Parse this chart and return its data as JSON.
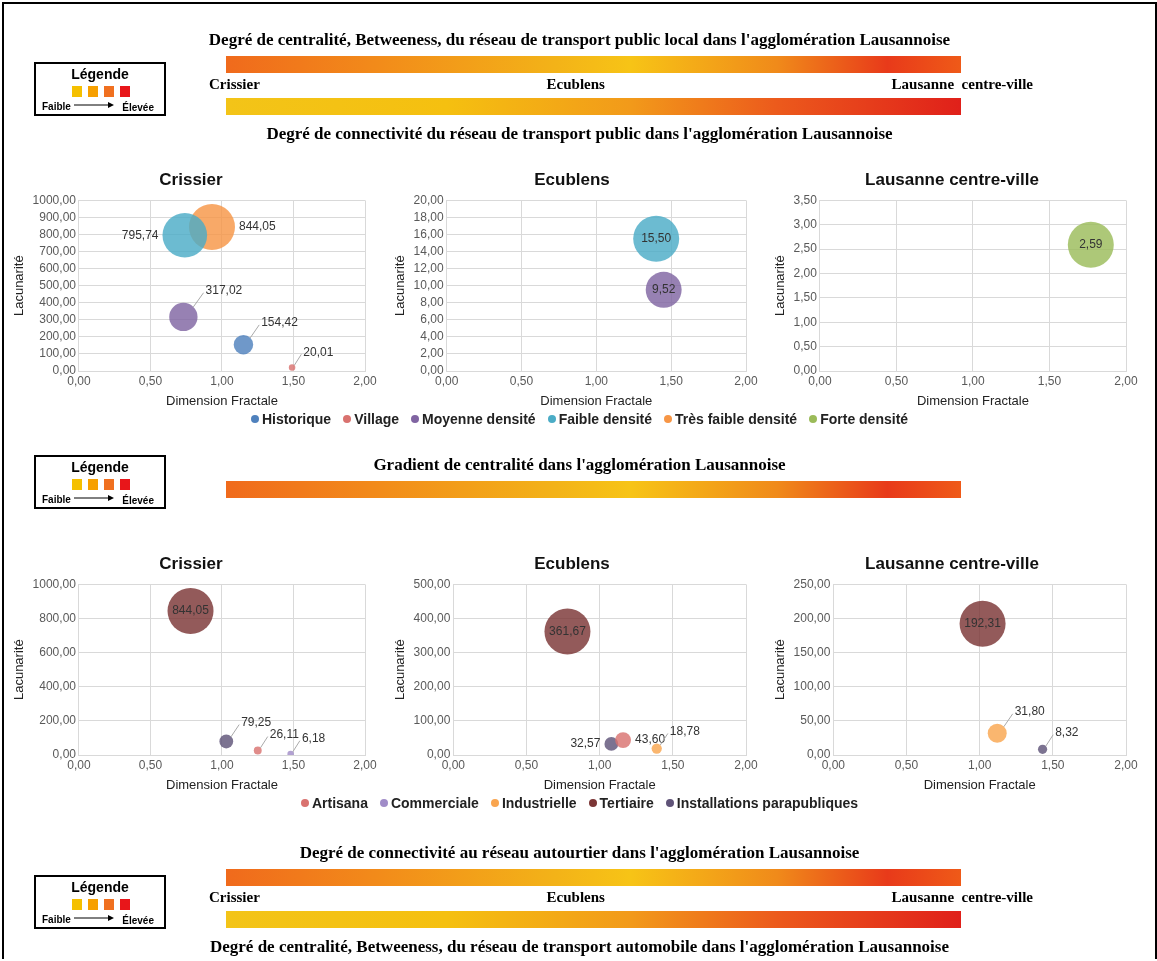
{
  "chart_data": [
    {
      "type": "other",
      "title": "Degré de centralité, Betweeness, du réseau de transport public local dans l'agglomération Lausannoise",
      "subtitle": "Degré de connectivité du réseau de transport public dans l'agglomération Lausannoise",
      "annotations": [
        "Légende",
        "Faible",
        "Élevée",
        "Crissier",
        "Ecublens",
        "Lausanne  centre-ville"
      ]
    },
    {
      "type": "bubble",
      "title": "Crissier",
      "xlabel": "Dimension Fractale",
      "ylabel": "Lacunarité",
      "grid": true,
      "legend": "bottom",
      "xlim": [
        0,
        2
      ],
      "xticks": [
        {
          "value": 0,
          "label": "0,00"
        },
        {
          "value": 0.5,
          "label": "0,50"
        },
        {
          "value": 1,
          "label": "1,00"
        },
        {
          "value": 1.5,
          "label": "1,50"
        },
        {
          "value": 2,
          "label": "2,00"
        }
      ],
      "ylim": [
        0,
        1000
      ],
      "yticks": [
        {
          "value": 0,
          "label": "0,00"
        },
        {
          "value": 100,
          "label": "100,00"
        },
        {
          "value": 200,
          "label": "200,00"
        },
        {
          "value": 300,
          "label": "300,00"
        },
        {
          "value": 400,
          "label": "400,00"
        },
        {
          "value": 500,
          "label": "500,00"
        },
        {
          "value": 600,
          "label": "600,00"
        },
        {
          "value": 700,
          "label": "700,00"
        },
        {
          "value": 800,
          "label": "800,00"
        },
        {
          "value": 900,
          "label": "900,00"
        },
        {
          "value": 1000,
          "label": "1000,00"
        }
      ],
      "series": [
        {
          "name": "Historique",
          "color": "#4f81bd",
          "x": [
            1.15
          ],
          "values": [
            154.42
          ],
          "sizes": [
            0.18
          ],
          "value_labels": [
            "154,42"
          ]
        },
        {
          "name": "Village",
          "color": "#d9726f",
          "x": [
            1.49
          ],
          "values": [
            20.01
          ],
          "sizes": [
            0.02
          ],
          "value_labels": [
            "20,01"
          ]
        },
        {
          "name": "Moyenne densité",
          "color": "#8064a2",
          "x": [
            0.73
          ],
          "values": [
            317.02
          ],
          "sizes": [
            0.38
          ],
          "value_labels": [
            "317,02"
          ]
        },
        {
          "name": "Faible densité",
          "color": "#4bacc6",
          "x": [
            0.74
          ],
          "values": [
            795.74
          ],
          "sizes": [
            0.94
          ],
          "value_labels": [
            "795,74"
          ]
        },
        {
          "name": "Très faible densité",
          "color": "#f79646",
          "x": [
            0.93
          ],
          "values": [
            844.05
          ],
          "sizes": [
            1
          ],
          "value_labels": [
            "844,05"
          ]
        }
      ]
    },
    {
      "type": "bubble",
      "title": "Ecublens",
      "xlabel": "Dimension Fractale",
      "ylabel": "Lacunarité",
      "grid": true,
      "legend": "bottom",
      "xlim": [
        0,
        2
      ],
      "xticks": [
        {
          "value": 0,
          "label": "0,00"
        },
        {
          "value": 0.5,
          "label": "0,50"
        },
        {
          "value": 1,
          "label": "1,00"
        },
        {
          "value": 1.5,
          "label": "1,50"
        },
        {
          "value": 2,
          "label": "2,00"
        }
      ],
      "ylim": [
        0,
        20
      ],
      "yticks": [
        {
          "value": 0,
          "label": "0,00"
        },
        {
          "value": 2,
          "label": "2,00"
        },
        {
          "value": 4,
          "label": "4,00"
        },
        {
          "value": 6,
          "label": "6,00"
        },
        {
          "value": 8,
          "label": "8,00"
        },
        {
          "value": 10,
          "label": "10,00"
        },
        {
          "value": 12,
          "label": "12,00"
        },
        {
          "value": 14,
          "label": "14,00"
        },
        {
          "value": 16,
          "label": "16,00"
        },
        {
          "value": 18,
          "label": "18,00"
        },
        {
          "value": 20,
          "label": "20,00"
        }
      ],
      "series": [
        {
          "name": "Moyenne densité",
          "color": "#8064a2",
          "x": [
            1.45
          ],
          "values": [
            9.52
          ],
          "sizes": [
            0.61
          ],
          "value_labels": [
            "9,52"
          ]
        },
        {
          "name": "Faible densité",
          "color": "#4bacc6",
          "x": [
            1.4
          ],
          "values": [
            15.5
          ],
          "sizes": [
            1
          ],
          "value_labels": [
            "15,50"
          ]
        }
      ]
    },
    {
      "type": "bubble",
      "title": "Lausanne centre-ville",
      "xlabel": "Dimension Fractale",
      "ylabel": "Lacunarité",
      "grid": true,
      "legend": "bottom",
      "xlim": [
        0,
        2
      ],
      "xticks": [
        {
          "value": 0,
          "label": "0,00"
        },
        {
          "value": 0.5,
          "label": "0,50"
        },
        {
          "value": 1,
          "label": "1,00"
        },
        {
          "value": 1.5,
          "label": "1,50"
        },
        {
          "value": 2,
          "label": "2,00"
        }
      ],
      "ylim": [
        0,
        3.5
      ],
      "yticks": [
        {
          "value": 0,
          "label": "0,00"
        },
        {
          "value": 0.5,
          "label": "0,50"
        },
        {
          "value": 1,
          "label": "1,00"
        },
        {
          "value": 1.5,
          "label": "1,50"
        },
        {
          "value": 2,
          "label": "2,00"
        },
        {
          "value": 2.5,
          "label": "2,50"
        },
        {
          "value": 3,
          "label": "3,00"
        },
        {
          "value": 3.5,
          "label": "3,50"
        }
      ],
      "series": [
        {
          "name": "Forte densité",
          "color": "#9bbb59",
          "x": [
            1.77
          ],
          "values": [
            2.59
          ],
          "sizes": [
            1
          ],
          "value_labels": [
            "2,59"
          ]
        }
      ]
    },
    {
      "type": "other",
      "title": "Gradient de centralité dans l'agglomération Lausannoise",
      "annotations": [
        "Légende",
        "Faible",
        "Élevée"
      ]
    },
    {
      "type": "bubble",
      "title": "Crissier",
      "xlabel": "Dimension Fractale",
      "ylabel": "Lacunarité",
      "grid": true,
      "legend": "bottom",
      "xlim": [
        0,
        2
      ],
      "xticks": [
        {
          "value": 0,
          "label": "0,00"
        },
        {
          "value": 0.5,
          "label": "0,50"
        },
        {
          "value": 1,
          "label": "1,00"
        },
        {
          "value": 1.5,
          "label": "1,50"
        },
        {
          "value": 2,
          "label": "2,00"
        }
      ],
      "ylim": [
        0,
        1000
      ],
      "yticks": [
        {
          "value": 0,
          "label": "0,00"
        },
        {
          "value": 200,
          "label": "200,00"
        },
        {
          "value": 400,
          "label": "400,00"
        },
        {
          "value": 600,
          "label": "600,00"
        },
        {
          "value": 800,
          "label": "800,00"
        },
        {
          "value": 1000,
          "label": "1000,00"
        }
      ],
      "series": [
        {
          "name": "Artisana",
          "color": "#d9726f",
          "x": [
            1.25
          ],
          "values": [
            26.11
          ],
          "sizes": [
            0.03
          ],
          "value_labels": [
            "26,11"
          ]
        },
        {
          "name": "Commerciale",
          "color": "#a08cc8",
          "x": [
            1.48
          ],
          "values": [
            6.18
          ],
          "sizes": [
            0.02
          ],
          "value_labels": [
            "6,18"
          ]
        },
        {
          "name": "Tertiaire",
          "color": "#7b3535",
          "x": [
            0.78
          ],
          "values": [
            844.05
          ],
          "sizes": [
            1
          ],
          "value_labels": [
            "844,05"
          ]
        },
        {
          "name": "Installations parapubliques",
          "color": "#5f5378",
          "x": [
            1.03
          ],
          "values": [
            79.25
          ],
          "sizes": [
            0.09
          ],
          "value_labels": [
            "79,25"
          ]
        }
      ]
    },
    {
      "type": "bubble",
      "title": "Ecublens",
      "xlabel": "Dimension Fractale",
      "ylabel": "Lacunarité",
      "grid": true,
      "legend": "bottom",
      "xlim": [
        0,
        2
      ],
      "xticks": [
        {
          "value": 0,
          "label": "0,00"
        },
        {
          "value": 0.5,
          "label": "0,50"
        },
        {
          "value": 1,
          "label": "1,00"
        },
        {
          "value": 1.5,
          "label": "1,50"
        },
        {
          "value": 2,
          "label": "2,00"
        }
      ],
      "ylim": [
        0,
        500
      ],
      "yticks": [
        {
          "value": 0,
          "label": "0,00"
        },
        {
          "value": 100,
          "label": "100,00"
        },
        {
          "value": 200,
          "label": "200,00"
        },
        {
          "value": 300,
          "label": "300,00"
        },
        {
          "value": 400,
          "label": "400,00"
        },
        {
          "value": 500,
          "label": "500,00"
        }
      ],
      "series": [
        {
          "name": "Artisana",
          "color": "#d9726f",
          "x": [
            1.16
          ],
          "values": [
            43.6
          ],
          "sizes": [
            0.12
          ],
          "value_labels": [
            "43,60"
          ]
        },
        {
          "name": "Industrielle",
          "color": "#f9a54f",
          "x": [
            1.39
          ],
          "values": [
            18.78
          ],
          "sizes": [
            0.05
          ],
          "value_labels": [
            "18,78"
          ]
        },
        {
          "name": "Tertiaire",
          "color": "#7b3535",
          "x": [
            0.78
          ],
          "values": [
            361.67
          ],
          "sizes": [
            1
          ],
          "value_labels": [
            "361,67"
          ]
        },
        {
          "name": "Installations parapubliques",
          "color": "#5f5378",
          "x": [
            1.08
          ],
          "values": [
            32.57
          ],
          "sizes": [
            0.09
          ],
          "value_labels": [
            "32,57"
          ]
        }
      ]
    },
    {
      "type": "bubble",
      "title": "Lausanne centre-ville",
      "xlabel": "Dimension Fractale",
      "ylabel": "Lacunarité",
      "grid": true,
      "legend": "bottom",
      "xlim": [
        0,
        2
      ],
      "xticks": [
        {
          "value": 0,
          "label": "0,00"
        },
        {
          "value": 0.5,
          "label": "0,50"
        },
        {
          "value": 1,
          "label": "1,00"
        },
        {
          "value": 1.5,
          "label": "1,50"
        },
        {
          "value": 2,
          "label": "2,00"
        }
      ],
      "ylim": [
        0,
        250
      ],
      "yticks": [
        {
          "value": 0,
          "label": "0,00"
        },
        {
          "value": 50,
          "label": "50,00"
        },
        {
          "value": 100,
          "label": "100,00"
        },
        {
          "value": 150,
          "label": "150,00"
        },
        {
          "value": 200,
          "label": "200,00"
        },
        {
          "value": 250,
          "label": "250,00"
        }
      ],
      "series": [
        {
          "name": "Industrielle",
          "color": "#f9a54f",
          "x": [
            1.12
          ],
          "values": [
            31.8
          ],
          "sizes": [
            0.17
          ],
          "value_labels": [
            "31,80"
          ]
        },
        {
          "name": "Tertiaire",
          "color": "#7b3535",
          "x": [
            1.02
          ],
          "values": [
            192.31
          ],
          "sizes": [
            1
          ],
          "value_labels": [
            "192,31"
          ]
        },
        {
          "name": "Installations parapubliques",
          "color": "#5f5378",
          "x": [
            1.43
          ],
          "values": [
            8.32
          ],
          "sizes": [
            0.04
          ],
          "value_labels": [
            "8,32"
          ]
        }
      ]
    },
    {
      "type": "other",
      "title": "Degré de connectivité au réseau autourtier dans l'agglomération Lausannoise",
      "subtitle": "Degré de centralité, Betweeness, du réseau de transport automobile dans l'agglomération Lausannoise",
      "annotations": [
        "Légende",
        "Faible",
        "Élevée",
        "Crissier",
        "Ecublens",
        "Lausanne  centre-ville"
      ]
    }
  ]
}
